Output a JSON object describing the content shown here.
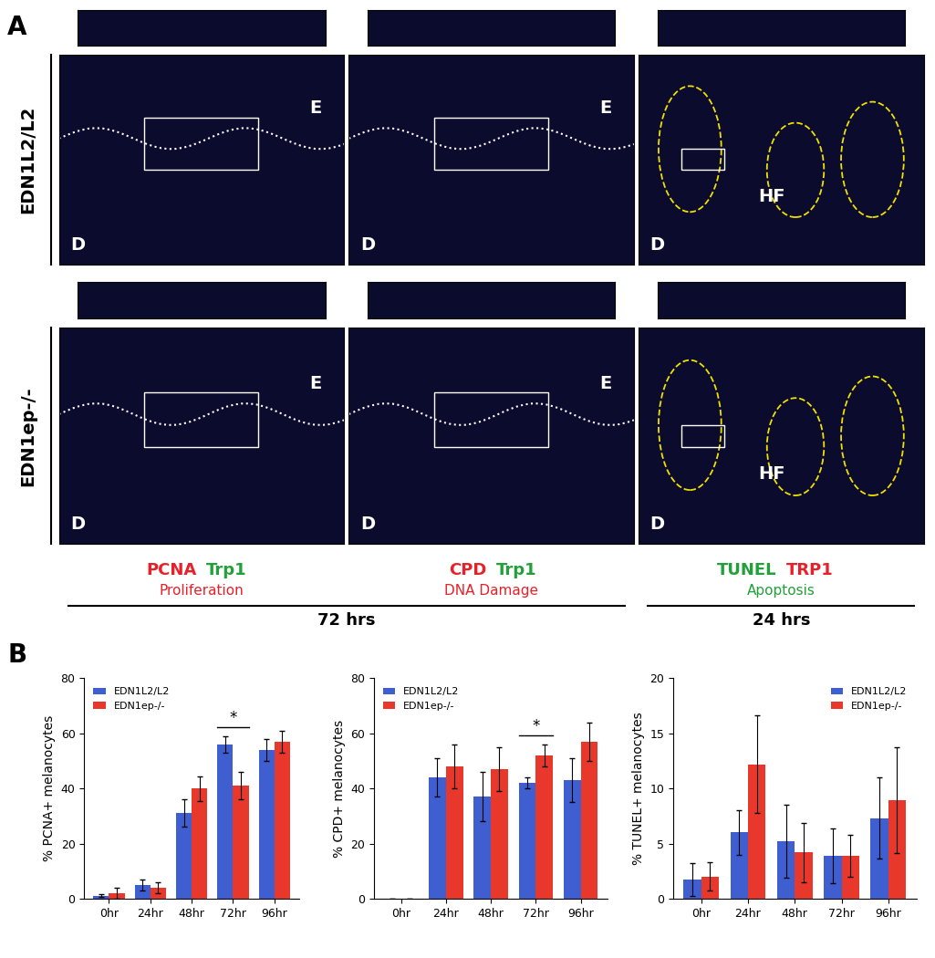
{
  "panel_a": {
    "label": "A",
    "rows": [
      {
        "label": "EDN1L2/L2",
        "images": [
          {
            "labels": [
              "E",
              "D"
            ]
          },
          {
            "labels": [
              "E",
              "D"
            ]
          },
          {
            "labels": [
              "D",
              "HF"
            ]
          }
        ]
      },
      {
        "label": "EDN1ep-/-",
        "images": [
          {
            "labels": [
              "E",
              "D"
            ]
          },
          {
            "labels": [
              "E",
              "D"
            ]
          },
          {
            "labels": [
              "HF",
              "D"
            ]
          }
        ]
      }
    ],
    "columns": [
      {
        "stains": [
          {
            "text": "PCNA",
            "color": "#e8202a"
          },
          {
            "text": "Trp1",
            "color": "#22a03a"
          }
        ],
        "process": {
          "text": "Proliferation",
          "color": "#e8202a"
        }
      },
      {
        "stains": [
          {
            "text": "CPD",
            "color": "#e8202a"
          },
          {
            "text": "Trp1",
            "color": "#22a03a"
          }
        ],
        "process": {
          "text": "DNA Damage",
          "color": "#e8202a"
        }
      },
      {
        "stains": [
          {
            "text": "TUNEL",
            "color": "#22a03a"
          },
          {
            "text": "TRP1",
            "color": "#e8202a"
          }
        ],
        "process": {
          "text": "Apoptosis",
          "color": "#22a03a"
        }
      }
    ],
    "timepoints": [
      "72 hrs",
      "24 hrs"
    ]
  },
  "panel_b": {
    "label": "B"
  },
  "chart_data": [
    {
      "type": "bar",
      "y_label": "% PCNA+ melanocytes",
      "categories": [
        "0hr",
        "24hr",
        "48hr",
        "72hr",
        "96hr"
      ],
      "series": [
        {
          "name": "EDN1L2/L2",
          "color": "#3f5fd0",
          "values": [
            1,
            5,
            31,
            56,
            54
          ],
          "errors": [
            0.5,
            2,
            5,
            3,
            4
          ]
        },
        {
          "name": "EDN1ep-/-",
          "color": "#e8382b",
          "values": [
            2,
            4,
            40,
            41,
            57
          ],
          "errors": [
            2,
            2,
            4.5,
            5,
            4
          ]
        }
      ],
      "ylim": [
        0,
        80
      ],
      "yticks": [
        0,
        20,
        40,
        60,
        80
      ],
      "legend": "upper left",
      "annotations": [
        {
          "category": "72hr",
          "text": "*"
        }
      ]
    },
    {
      "type": "bar",
      "y_label": "% CPD+ melanocytes",
      "categories": [
        "0hr",
        "24hr",
        "48hr",
        "72hr",
        "96hr"
      ],
      "series": [
        {
          "name": "EDN1L2/L2",
          "color": "#3f5fd0",
          "values": [
            0,
            44,
            37,
            42,
            43
          ],
          "errors": [
            0,
            7,
            9,
            2,
            8
          ]
        },
        {
          "name": "EDN1ep-/-",
          "color": "#e8382b",
          "values": [
            0,
            48,
            47,
            52,
            57
          ],
          "errors": [
            0,
            8,
            8,
            4,
            7
          ]
        }
      ],
      "ylim": [
        0,
        80
      ],
      "yticks": [
        0,
        20,
        40,
        60,
        80
      ],
      "legend": "upper left",
      "annotations": [
        {
          "category": "72hr",
          "text": "*"
        }
      ]
    },
    {
      "type": "bar",
      "y_label": "% TUNEL+ melanocytes",
      "categories": [
        "0hr",
        "24hr",
        "48hr",
        "72hr",
        "96hr"
      ],
      "series": [
        {
          "name": "EDN1L2/L2",
          "color": "#3f5fd0",
          "values": [
            1.7,
            6,
            5.2,
            3.9,
            7.3
          ],
          "errors": [
            1.5,
            2,
            3.3,
            2.5,
            3.7
          ]
        },
        {
          "name": "EDN1ep-/-",
          "color": "#e8382b",
          "values": [
            2,
            12.2,
            4.2,
            3.9,
            8.9
          ],
          "errors": [
            1.3,
            4.4,
            2.7,
            1.9,
            4.8
          ]
        }
      ],
      "ylim": [
        0,
        20
      ],
      "yticks": [
        0,
        5,
        10,
        15,
        20
      ],
      "legend": "upper right",
      "annotations": []
    }
  ]
}
